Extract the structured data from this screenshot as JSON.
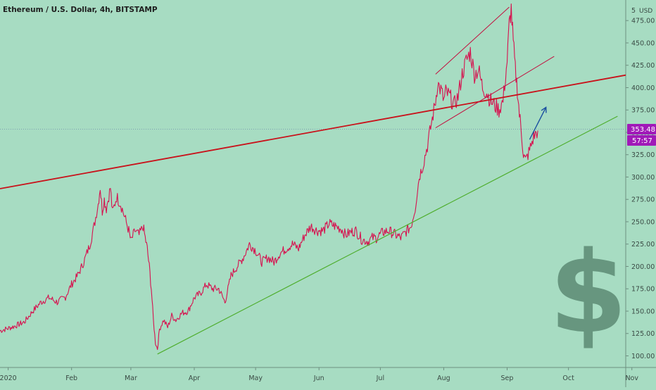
{
  "chart_data": {
    "type": "line",
    "title": "Ethereum / U.S. Dollar, 4h, BITSTAMP",
    "currency_label": "USD",
    "axis_extra_tick": "5",
    "ylim": [
      87,
      498
    ],
    "y_ticks": [
      100,
      125,
      150,
      175,
      200,
      225,
      250,
      275,
      300,
      325,
      350,
      375,
      400,
      425,
      450,
      475
    ],
    "y_tick_labels": [
      "100.00",
      "125.00",
      "150.00",
      "175.00",
      "200.00",
      "225.00",
      "250.00",
      "275.00",
      "300.00",
      "325.00",
      "350.00",
      "375.00",
      "400.00",
      "425.00",
      "450.00",
      "475.00"
    ],
    "x_labels": [
      {
        "label": "2020",
        "day": 0
      },
      {
        "label": "Feb",
        "day": 31
      },
      {
        "label": "Mar",
        "day": 60
      },
      {
        "label": "Apr",
        "day": 91
      },
      {
        "label": "May",
        "day": 121
      },
      {
        "label": "Jun",
        "day": 152
      },
      {
        "label": "Jul",
        "day": 182
      },
      {
        "label": "Aug",
        "day": 213
      },
      {
        "label": "Sep",
        "day": 244
      },
      {
        "label": "Oct",
        "day": 274
      },
      {
        "label": "Nov",
        "day": 305
      }
    ],
    "xlim_days": [
      -4,
      302
    ],
    "last_price": "353.48",
    "countdown": "57:57",
    "price_line": 353.48,
    "series": [
      {
        "color": "#d6124f",
        "points": [
          [
            -4,
            128
          ],
          [
            3,
            133
          ],
          [
            8,
            138
          ],
          [
            12,
            150
          ],
          [
            16,
            160
          ],
          [
            20,
            165
          ],
          [
            24,
            160
          ],
          [
            28,
            166
          ],
          [
            31,
            180
          ],
          [
            34,
            190
          ],
          [
            37,
            205
          ],
          [
            40,
            225
          ],
          [
            42,
            245
          ],
          [
            44,
            270
          ],
          [
            45,
            289
          ],
          [
            46,
            262
          ],
          [
            47,
            275
          ],
          [
            48,
            265
          ],
          [
            50,
            288
          ],
          [
            51,
            260
          ],
          [
            53,
            278
          ],
          [
            55,
            270
          ],
          [
            57,
            255
          ],
          [
            59,
            240
          ],
          [
            60,
            228
          ],
          [
            62,
            240
          ],
          [
            64,
            235
          ],
          [
            66,
            245
          ],
          [
            67,
            232
          ],
          [
            68,
            220
          ],
          [
            69,
            200
          ],
          [
            70,
            175
          ],
          [
            71,
            140
          ],
          [
            72,
            115
          ],
          [
            73,
            108
          ],
          [
            74,
            130
          ],
          [
            76,
            140
          ],
          [
            78,
            132
          ],
          [
            80,
            145
          ],
          [
            82,
            140
          ],
          [
            85,
            148
          ],
          [
            88,
            150
          ],
          [
            91,
            165
          ],
          [
            94,
            170
          ],
          [
            97,
            180
          ],
          [
            100,
            175
          ],
          [
            103,
            175
          ],
          [
            106,
            160
          ],
          [
            109,
            190
          ],
          [
            112,
            200
          ],
          [
            115,
            210
          ],
          [
            118,
            225
          ],
          [
            121,
            218
          ],
          [
            124,
            205
          ],
          [
            127,
            210
          ],
          [
            130,
            205
          ],
          [
            133,
            215
          ],
          [
            136,
            220
          ],
          [
            139,
            225
          ],
          [
            142,
            220
          ],
          [
            145,
            235
          ],
          [
            148,
            245
          ],
          [
            151,
            240
          ],
          [
            154,
            240
          ],
          [
            157,
            248
          ],
          [
            160,
            245
          ],
          [
            163,
            242
          ],
          [
            165,
            235
          ],
          [
            167,
            238
          ],
          [
            170,
            240
          ],
          [
            173,
            230
          ],
          [
            176,
            228
          ],
          [
            178,
            232
          ],
          [
            180,
            232
          ],
          [
            183,
            238
          ],
          [
            186,
            240
          ],
          [
            189,
            236
          ],
          [
            192,
            232
          ],
          [
            195,
            240
          ],
          [
            197,
            245
          ],
          [
            199,
            265
          ],
          [
            201,
            300
          ],
          [
            203,
            315
          ],
          [
            205,
            335
          ],
          [
            207,
            360
          ],
          [
            209,
            385
          ],
          [
            210,
            405
          ],
          [
            212,
            395
          ],
          [
            213,
            385
          ],
          [
            214,
            395
          ],
          [
            216,
            390
          ],
          [
            218,
            380
          ],
          [
            220,
            390
          ],
          [
            222,
            415
          ],
          [
            224,
            430
          ],
          [
            226,
            440
          ],
          [
            228,
            415
          ],
          [
            230,
            420
          ],
          [
            232,
            400
          ],
          [
            234,
            395
          ],
          [
            236,
            385
          ],
          [
            238,
            380
          ],
          [
            240,
            375
          ],
          [
            242,
            385
          ],
          [
            244,
            430
          ],
          [
            245,
            470
          ],
          [
            246,
            488
          ],
          [
            247,
            450
          ],
          [
            248,
            420
          ],
          [
            249,
            398
          ],
          [
            250,
            370
          ],
          [
            251,
            350
          ],
          [
            252,
            325
          ],
          [
            253,
            318
          ],
          [
            255,
            330
          ],
          [
            257,
            345
          ],
          [
            259,
            352
          ]
        ]
      }
    ],
    "trendlines": [
      {
        "color": "#c9111a",
        "width": 1.8,
        "from": [
          -4,
          287
        ],
        "to": [
          302,
          414
        ]
      },
      {
        "color": "#4fae2e",
        "width": 1.2,
        "from": [
          73,
          102
        ],
        "to": [
          298,
          368
        ]
      },
      {
        "color": "#c2103f",
        "width": 1.0,
        "from": [
          209,
          355
        ],
        "to": [
          267,
          435
        ]
      },
      {
        "color": "#c2103f",
        "width": 1.0,
        "from": [
          209,
          415
        ],
        "to": [
          245,
          490
        ]
      }
    ],
    "arrow": {
      "color": "#1b4fa0",
      "from": [
        255,
        342
      ],
      "to": [
        263,
        378
      ]
    },
    "grid": false,
    "legend": "none"
  }
}
